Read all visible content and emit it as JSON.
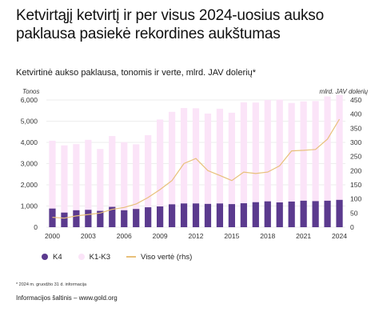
{
  "title": "Ketvirtąjį ketvirtį ir per visus 2024-uosius aukso paklausa pasiekė rekordines aukštumas",
  "subtitle": "Ketvirtinė aukso paklausa, tonomis ir verte, mlrd. JAV dolerių*",
  "footnote": "* 2024 m. gruodžio 31 d. informacija",
  "source": "Informacijos šaltinis – www.gold.org",
  "colors": {
    "q4": "#5b3a8e",
    "q1q3": "#fbe4f8",
    "value_line": "#e8c07a",
    "grid": "#dcdcdc",
    "axis_text": "#333333"
  },
  "legend": {
    "q4": "K4",
    "q1q3": "K1-K3",
    "value": "Viso vertė (rhs)"
  },
  "chart_data": {
    "type": "bar",
    "stacked": true,
    "y_left_label": "Tonos",
    "y_right_label": "mlrd. JAV dolerių",
    "y_left_lim": [
      0,
      6000
    ],
    "y_right_lim": [
      0,
      450
    ],
    "y_left_ticks": [
      "0",
      "1,000",
      "2,000",
      "3,000",
      "4,000",
      "5,000",
      "6,000"
    ],
    "y_right_ticks": [
      "0",
      "50",
      "100",
      "150",
      "200",
      "250",
      "300",
      "350",
      "400",
      "450"
    ],
    "x_tick_labels": [
      "2000",
      "2003",
      "2006",
      "2009",
      "2012",
      "2015",
      "2018",
      "2021",
      "2024"
    ],
    "grid": true,
    "legend_position": "bottom",
    "categories": [
      "2000",
      "2001",
      "2002",
      "2003",
      "2004",
      "2005",
      "2006",
      "2007",
      "2008",
      "2009",
      "2010",
      "2011",
      "2012",
      "2013",
      "2014",
      "2015",
      "2016",
      "2017",
      "2018",
      "2019",
      "2020",
      "2021",
      "2022",
      "2023",
      "2024"
    ],
    "series": [
      {
        "name": "K4",
        "values": [
          880,
          690,
          800,
          820,
          770,
          960,
          800,
          860,
          940,
          980,
          1080,
          1120,
          1120,
          1100,
          1120,
          1090,
          1130,
          1180,
          1220,
          1170,
          1210,
          1250,
          1230,
          1250,
          1290
        ]
      },
      {
        "name": "K1-K3",
        "values": [
          3200,
          3170,
          3120,
          3300,
          2920,
          3340,
          3210,
          3050,
          3400,
          4100,
          4360,
          4500,
          4490,
          4260,
          4470,
          4310,
          4760,
          4700,
          4780,
          4850,
          4650,
          4680,
          4720,
          4920,
          4950
        ]
      },
      {
        "name": "Viso vertė (rhs)",
        "values": [
          35,
          32,
          40,
          45,
          50,
          63,
          70,
          82,
          105,
          133,
          165,
          225,
          243,
          200,
          183,
          165,
          195,
          190,
          195,
          217,
          270,
          272,
          275,
          312,
          382
        ]
      }
    ]
  }
}
